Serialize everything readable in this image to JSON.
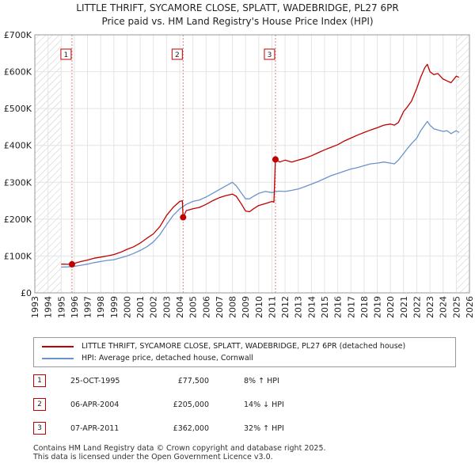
{
  "chart_data": {
    "type": "line",
    "title": "LITTLE THRIFT, SYCAMORE CLOSE, SPLATT, WADEBRIDGE, PL27 6PR",
    "subtitle": "Price paid vs. HM Land Registry's House Price Index (HPI)",
    "xlim": [
      1993,
      2026
    ],
    "ylim": [
      0,
      700000
    ],
    "x_ticks": [
      "1993",
      "1994",
      "1995",
      "1996",
      "1997",
      "1998",
      "1999",
      "2000",
      "2001",
      "2002",
      "2003",
      "2004",
      "2005",
      "2006",
      "2007",
      "2008",
      "2009",
      "2010",
      "2011",
      "2012",
      "2013",
      "2014",
      "2015",
      "2016",
      "2017",
      "2018",
      "2019",
      "2020",
      "2021",
      "2022",
      "2023",
      "2024",
      "2025",
      "2026"
    ],
    "y_ticks": [
      {
        "value": 0,
        "label": "£0"
      },
      {
        "value": 100000,
        "label": "£100K"
      },
      {
        "value": 200000,
        "label": "£200K"
      },
      {
        "value": 300000,
        "label": "£300K"
      },
      {
        "value": 400000,
        "label": "£400K"
      },
      {
        "value": 500000,
        "label": "£500K"
      },
      {
        "value": 600000,
        "label": "£600K"
      },
      {
        "value": 700000,
        "label": "£700K"
      }
    ],
    "hatched_ranges": [
      [
        1993,
        1995.0
      ],
      [
        2025.0,
        2026
      ]
    ],
    "series": [
      {
        "name": "LITTLE THRIFT, SYCAMORE CLOSE, SPLATT, WADEBRIDGE, PL27 6PR (detached house)",
        "color": "#c00000",
        "x": [
          1995.0,
          1995.5,
          1995.82,
          1996.0,
          1996.5,
          1997.0,
          1997.5,
          1998.0,
          1998.5,
          1999.0,
          1999.5,
          2000.0,
          2000.5,
          2001.0,
          2001.5,
          2002.0,
          2002.5,
          2003.0,
          2003.5,
          2004.0,
          2004.2,
          2004.26,
          2004.5,
          2005.0,
          2005.5,
          2006.0,
          2006.5,
          2007.0,
          2007.5,
          2008.0,
          2008.3,
          2008.7,
          2009.0,
          2009.3,
          2009.6,
          2010.0,
          2010.5,
          2011.0,
          2011.15,
          2011.27,
          2011.6,
          2012.0,
          2012.5,
          2013.0,
          2013.5,
          2014.0,
          2014.5,
          2015.0,
          2015.5,
          2016.0,
          2016.5,
          2017.0,
          2017.5,
          2018.0,
          2018.5,
          2019.0,
          2019.5,
          2020.0,
          2020.3,
          2020.6,
          2021.0,
          2021.3,
          2021.6,
          2022.0,
          2022.3,
          2022.6,
          2022.8,
          2023.0,
          2023.3,
          2023.6,
          2024.0,
          2024.3,
          2024.6,
          2025.0,
          2025.2
        ],
        "values": [
          78000,
          77500,
          77500,
          80000,
          85000,
          89000,
          94000,
          97000,
          100000,
          104000,
          110000,
          118000,
          125000,
          135000,
          148000,
          160000,
          180000,
          210000,
          232000,
          248000,
          250000,
          205000,
          223000,
          228000,
          232000,
          240000,
          250000,
          258000,
          264000,
          268000,
          262000,
          240000,
          222000,
          220000,
          228000,
          237000,
          242000,
          248000,
          246000,
          362000,
          355000,
          360000,
          355000,
          360000,
          365000,
          372000,
          380000,
          388000,
          395000,
          402000,
          412000,
          420000,
          428000,
          435000,
          442000,
          448000,
          455000,
          458000,
          455000,
          462000,
          492000,
          505000,
          520000,
          555000,
          585000,
          610000,
          620000,
          600000,
          592000,
          595000,
          580000,
          575000,
          570000,
          588000,
          585000
        ]
      },
      {
        "name": "HPI: Average price, detached house, Cornwall",
        "color": "#6a93cc",
        "x": [
          1995.0,
          1995.5,
          1996.0,
          1996.5,
          1997.0,
          1997.5,
          1998.0,
          1998.5,
          1999.0,
          1999.5,
          2000.0,
          2000.5,
          2001.0,
          2001.5,
          2002.0,
          2002.5,
          2003.0,
          2003.5,
          2004.0,
          2004.5,
          2005.0,
          2005.5,
          2006.0,
          2006.5,
          2007.0,
          2007.5,
          2008.0,
          2008.3,
          2008.7,
          2009.0,
          2009.3,
          2009.6,
          2010.0,
          2010.5,
          2011.0,
          2011.5,
          2012.0,
          2012.5,
          2013.0,
          2013.5,
          2014.0,
          2014.5,
          2015.0,
          2015.5,
          2016.0,
          2016.5,
          2017.0,
          2017.5,
          2018.0,
          2018.5,
          2019.0,
          2019.5,
          2020.0,
          2020.3,
          2020.6,
          2021.0,
          2021.3,
          2021.6,
          2022.0,
          2022.3,
          2022.6,
          2022.8,
          2023.0,
          2023.3,
          2023.6,
          2024.0,
          2024.3,
          2024.6,
          2025.0,
          2025.2
        ],
        "values": [
          70000,
          70500,
          72000,
          75000,
          78000,
          82000,
          85000,
          88000,
          90000,
          95000,
          100000,
          107000,
          115000,
          125000,
          138000,
          158000,
          185000,
          210000,
          228000,
          240000,
          248000,
          252000,
          260000,
          270000,
          280000,
          290000,
          300000,
          290000,
          270000,
          255000,
          255000,
          262000,
          270000,
          275000,
          272000,
          276000,
          275000,
          278000,
          282000,
          288000,
          295000,
          302000,
          310000,
          318000,
          324000,
          330000,
          336000,
          340000,
          345000,
          350000,
          352000,
          355000,
          352000,
          350000,
          360000,
          378000,
          392000,
          405000,
          420000,
          440000,
          455000,
          465000,
          455000,
          445000,
          442000,
          438000,
          440000,
          432000,
          440000,
          435000
        ]
      }
    ],
    "sales": [
      {
        "num": "1",
        "x": 1995.82,
        "value": 77500,
        "date": "25-OCT-1995",
        "price": "£77,500",
        "hpi": "8% ↑ HPI"
      },
      {
        "num": "2",
        "x": 2004.26,
        "value": 205000,
        "date": "06-APR-2004",
        "price": "£205,000",
        "hpi": "14% ↓ HPI"
      },
      {
        "num": "3",
        "x": 2011.27,
        "value": 362000,
        "date": "07-APR-2011",
        "price": "£362,000",
        "hpi": "32% ↑ HPI"
      }
    ],
    "legend": {
      "property": "LITTLE THRIFT, SYCAMORE CLOSE, SPLATT, WADEBRIDGE, PL27 6PR (detached house)",
      "hpi": "HPI: Average price, detached house, Cornwall"
    }
  },
  "footer": {
    "line1": "Contains HM Land Registry data © Crown copyright and database right 2025.",
    "line2": "This data is licensed under the Open Government Licence v3.0."
  }
}
